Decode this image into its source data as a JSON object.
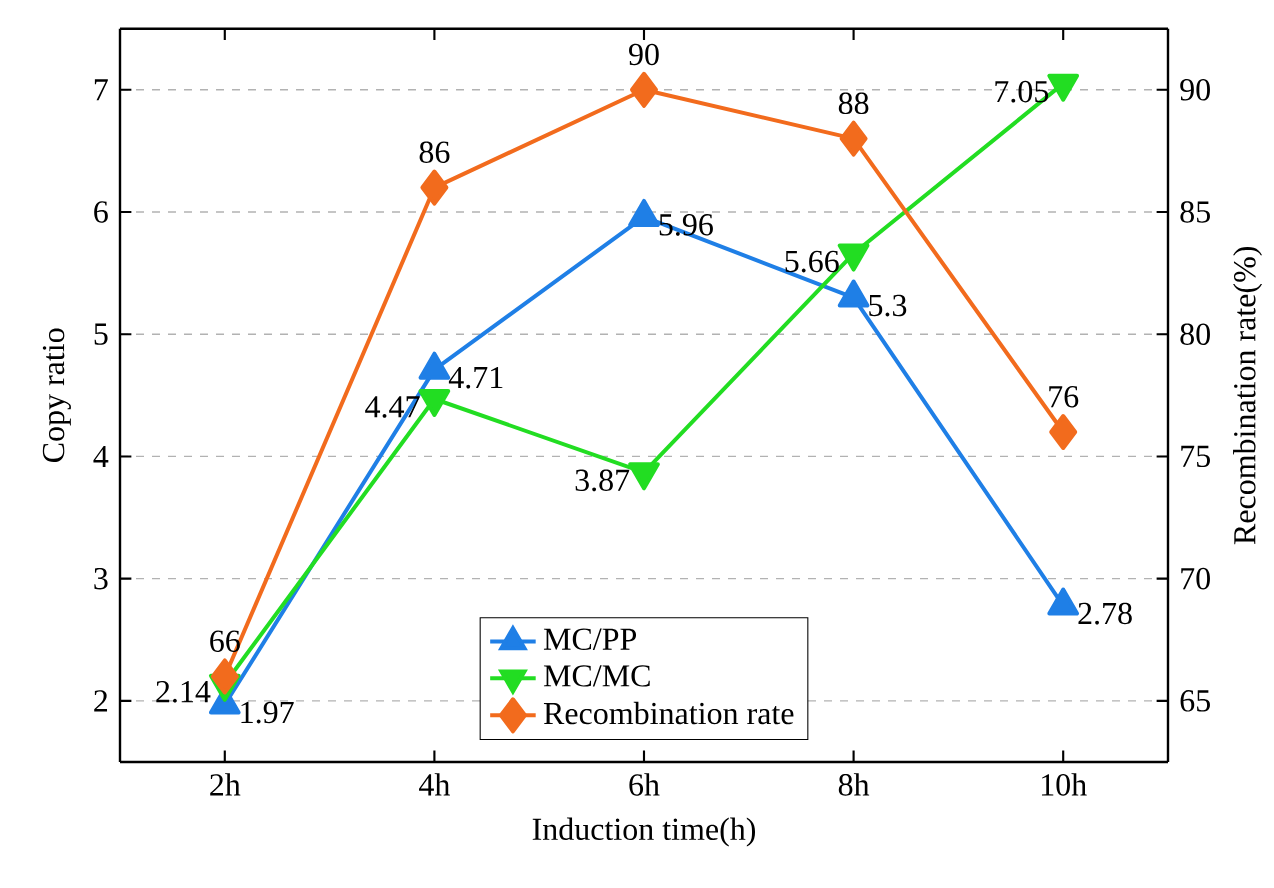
{
  "chart_data": {
    "type": "line",
    "xlabel": "Induction time(h)",
    "ylabel": "Copy ratio",
    "y2label": "Recombination rate(%)",
    "categories": [
      "2h",
      "4h",
      "6h",
      "8h",
      "10h"
    ],
    "series": [
      {
        "name": "MC/PP",
        "color": "#1f7fe6",
        "marker": "triangle",
        "values": [
          1.97,
          4.71,
          5.96,
          5.3,
          2.78
        ]
      },
      {
        "name": "MC/MC",
        "color": "#22dd22",
        "marker": "triangle",
        "values": [
          2.14,
          4.47,
          3.87,
          5.66,
          7.05
        ]
      },
      {
        "name": "Recombination rate",
        "color": "#f26b1d",
        "marker": "diamond",
        "axis": "y2",
        "values": [
          66,
          86,
          90,
          88,
          76
        ]
      }
    ],
    "ylim": [
      1.5,
      7.5
    ],
    "yticks": [
      2,
      3,
      4,
      5,
      6,
      7
    ],
    "y2lim": [
      62.5,
      92.5
    ],
    "y2ticks": [
      65,
      70,
      75,
      80,
      85,
      90
    ],
    "grid": "y",
    "legend": "bottom",
    "data_labels": true,
    "line_style": "solid"
  }
}
